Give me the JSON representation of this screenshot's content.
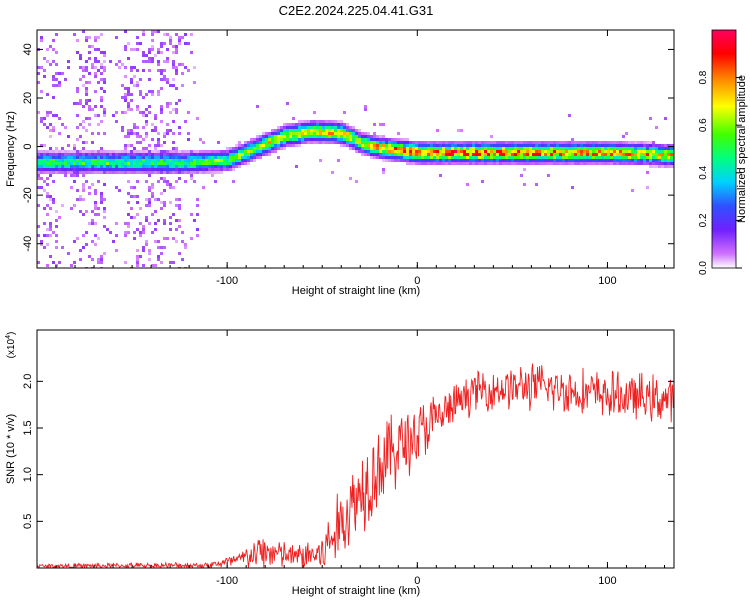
{
  "title": "C2E2.2024.225.04.41.G31",
  "chart_data": [
    {
      "type": "heatmap",
      "xlabel": "Height of straight line (km)",
      "ylabel": "Frequency (Hz)",
      "xlim": [
        -200,
        135
      ],
      "ylim": [
        -50,
        48
      ],
      "xticks": [
        -100,
        0,
        100
      ],
      "yticks": [
        -40,
        -20,
        0,
        20,
        40
      ],
      "tick_labels_x": [
        "-100",
        "0",
        "100"
      ],
      "tick_labels_y": [
        "-40",
        "-20",
        "0",
        "20",
        "40"
      ],
      "colorbar": {
        "label": "Normalized spectral amplitude",
        "range": [
          0,
          1
        ],
        "ticks": [
          "0.0",
          "0.2",
          "0.4",
          "0.6",
          "0.8"
        ],
        "colors": [
          "#ffffff",
          "#d070ff",
          "#7020ff",
          "#3050ff",
          "#00d0ff",
          "#00ff80",
          "#40ff00",
          "#ffff00",
          "#ff8000",
          "#ff0000",
          "#ff0060"
        ]
      },
      "ridge": {
        "description_points": [
          {
            "x": -200,
            "f": -6,
            "a": 0.5
          },
          {
            "x": -120,
            "f": -6,
            "a": 0.5
          },
          {
            "x": -100,
            "f": -5,
            "a": 0.55
          },
          {
            "x": -85,
            "f": 0,
            "a": 0.6
          },
          {
            "x": -70,
            "f": 5,
            "a": 0.7
          },
          {
            "x": -55,
            "f": 7,
            "a": 0.7
          },
          {
            "x": -40,
            "f": 6,
            "a": 0.7
          },
          {
            "x": -30,
            "f": 2,
            "a": 0.6
          },
          {
            "x": -20,
            "f": 0,
            "a": 0.75
          },
          {
            "x": 0,
            "f": -2,
            "a": 0.85
          },
          {
            "x": 60,
            "f": -2,
            "a": 0.8
          },
          {
            "x": 100,
            "f": -2,
            "a": 0.75
          },
          {
            "x": 135,
            "f": -3,
            "a": 0.7
          }
        ]
      }
    },
    {
      "type": "line",
      "xlabel": "Height of straight line (km)",
      "ylabel": "SNR (10 * v/v)",
      "yscale_label": "(x10",
      "yscale_exp": "4",
      "yscale_close": ")",
      "xlim": [
        -200,
        135
      ],
      "ylim": [
        0,
        2.55
      ],
      "xticks": [
        -100,
        0,
        100
      ],
      "yticks": [
        0.5,
        1.0,
        1.5,
        2.0
      ],
      "tick_labels_x": [
        "-100",
        "0",
        "100"
      ],
      "tick_labels_y": [
        "0.5",
        "1.0",
        "1.5",
        "2.0"
      ],
      "line_color": "#ee2020",
      "envelope": [
        {
          "x": -200,
          "mean": 0.02,
          "noise": 0.03
        },
        {
          "x": -110,
          "mean": 0.03,
          "noise": 0.04
        },
        {
          "x": -95,
          "mean": 0.08,
          "noise": 0.1
        },
        {
          "x": -80,
          "mean": 0.18,
          "noise": 0.25
        },
        {
          "x": -65,
          "mean": 0.12,
          "noise": 0.15
        },
        {
          "x": -50,
          "mean": 0.15,
          "noise": 0.3
        },
        {
          "x": -38,
          "mean": 0.55,
          "noise": 0.5
        },
        {
          "x": -25,
          "mean": 1.0,
          "noise": 0.6
        },
        {
          "x": -10,
          "mean": 1.3,
          "noise": 0.5
        },
        {
          "x": 5,
          "mean": 1.5,
          "noise": 0.4
        },
        {
          "x": 20,
          "mean": 1.75,
          "noise": 0.25
        },
        {
          "x": 30,
          "mean": 1.9,
          "noise": 0.25
        },
        {
          "x": 60,
          "mean": 1.95,
          "noise": 0.3
        },
        {
          "x": 100,
          "mean": 1.85,
          "noise": 0.3
        },
        {
          "x": 135,
          "mean": 1.8,
          "noise": 0.3
        }
      ]
    }
  ]
}
